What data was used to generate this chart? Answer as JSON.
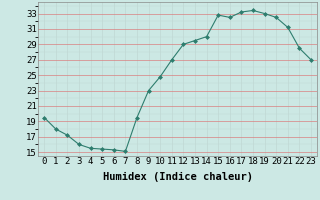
{
  "xlabel": "Humidex (Indice chaleur)",
  "x": [
    0,
    1,
    2,
    3,
    4,
    5,
    6,
    7,
    8,
    9,
    10,
    11,
    12,
    13,
    14,
    15,
    16,
    17,
    18,
    19,
    20,
    21,
    22,
    23
  ],
  "y": [
    19.5,
    18.0,
    17.2,
    16.0,
    15.5,
    15.4,
    15.3,
    15.1,
    19.5,
    23.0,
    24.8,
    27.0,
    29.0,
    29.5,
    30.0,
    32.8,
    32.5,
    33.2,
    33.4,
    33.0,
    32.5,
    31.2,
    28.5,
    27.0
  ],
  "line_color": "#2e7d6e",
  "marker": "D",
  "marker_size": 2.0,
  "bg_color": "#cce8e4",
  "grid_color_major": "#d98080",
  "grid_color_minor": "#c0d8d4",
  "ylim": [
    14.5,
    34.5
  ],
  "yticks": [
    15,
    17,
    19,
    21,
    23,
    25,
    27,
    29,
    31,
    33
  ],
  "xlim": [
    -0.5,
    23.5
  ],
  "label_fontsize": 7.5,
  "tick_fontsize": 6.5
}
